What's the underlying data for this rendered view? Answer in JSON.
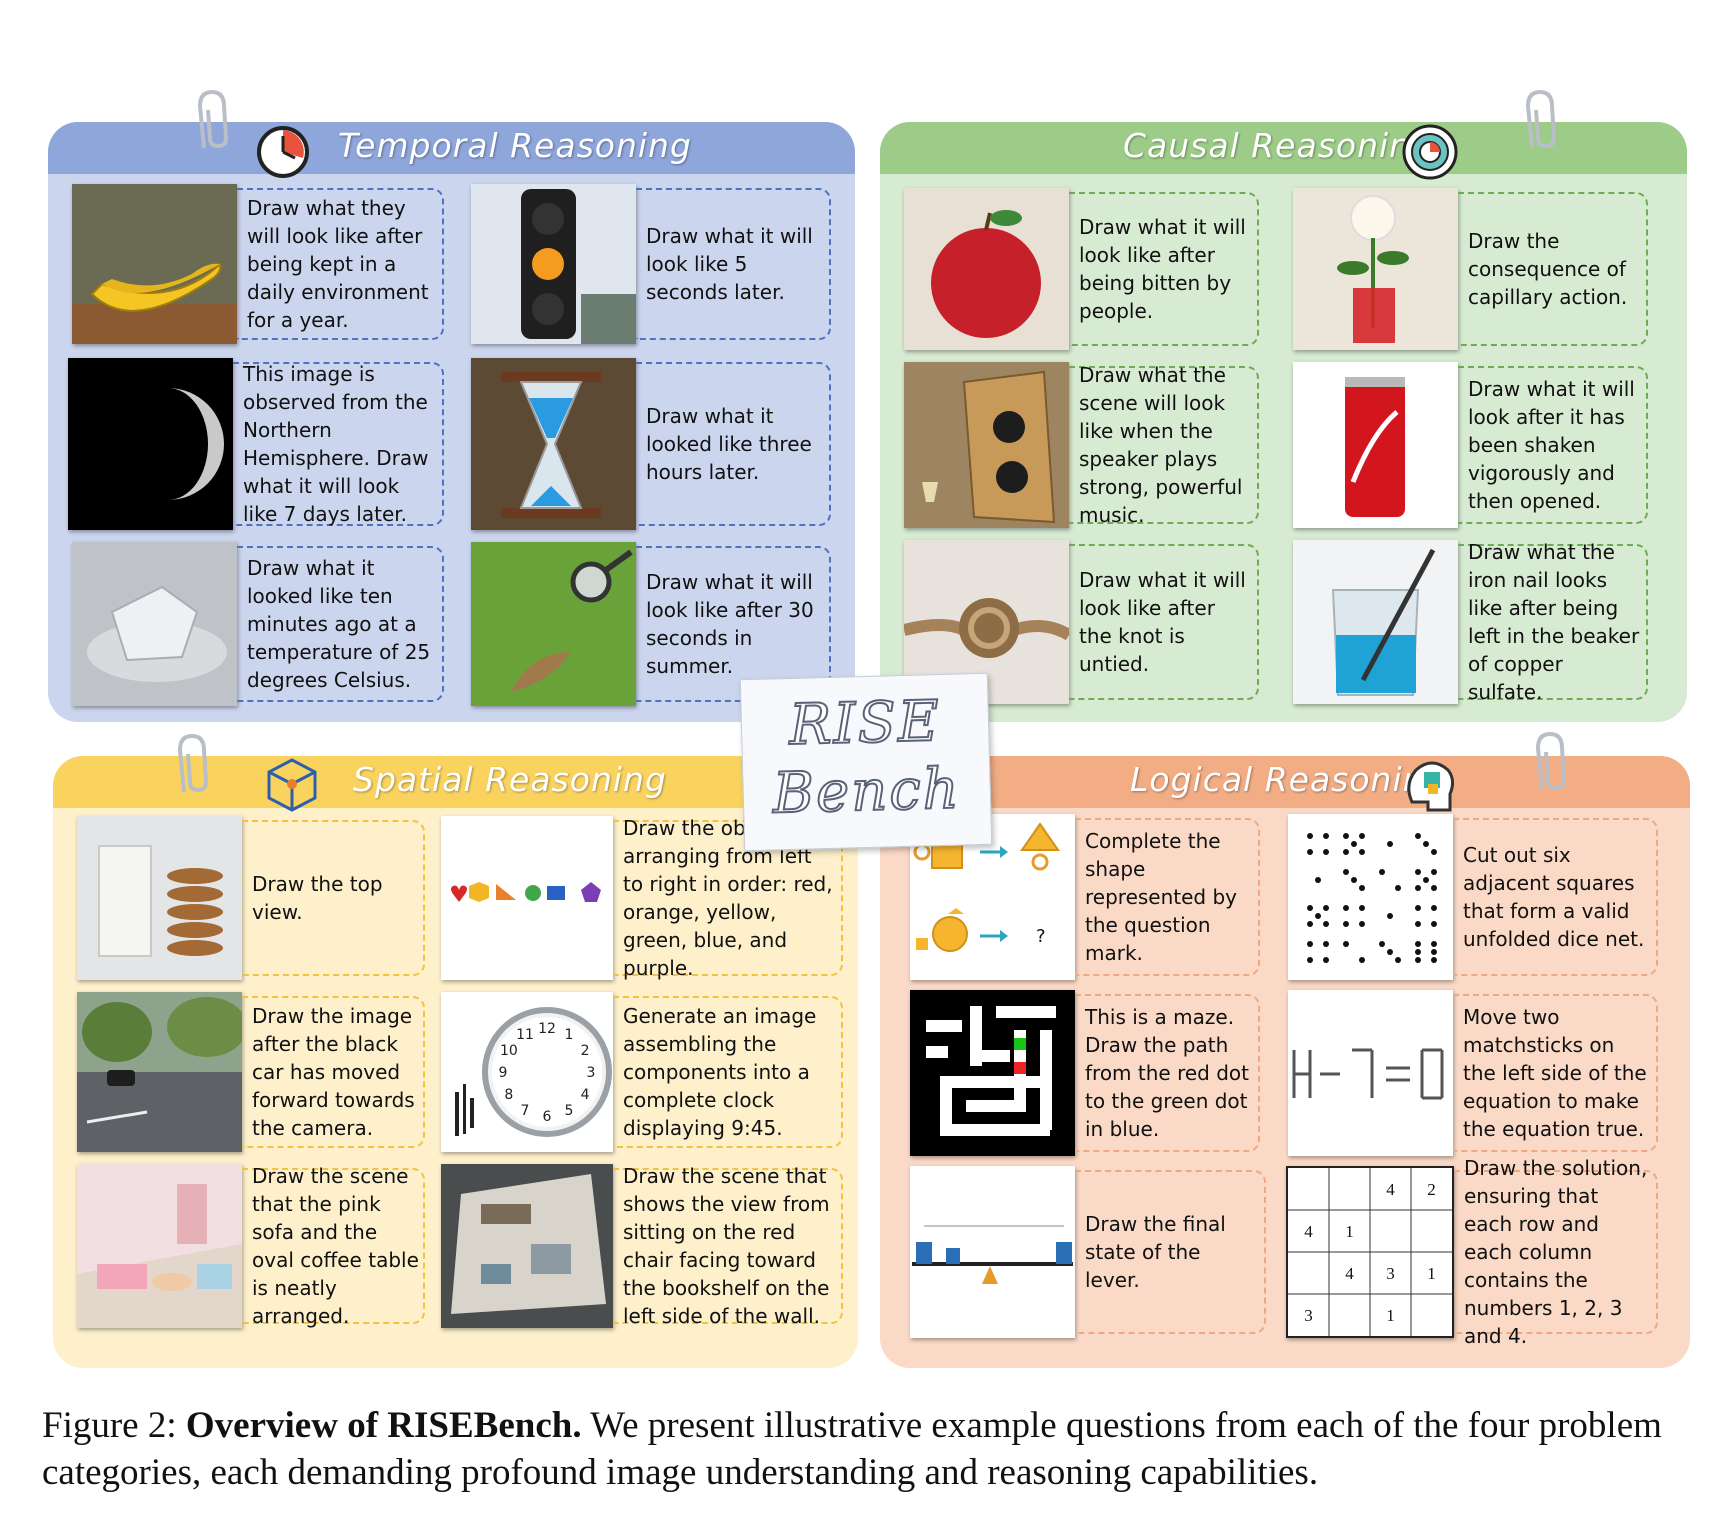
{
  "temporal": {
    "title": "Temporal Reasoning",
    "icon": "clock-icon",
    "cards": [
      {
        "text": "Draw what they will look like after being kept in a daily environment for a year.",
        "image": "banana-photo"
      },
      {
        "text": "Draw what it will look like 5 seconds later.",
        "image": "traffic-light-photo"
      },
      {
        "text": "This image is observed from the Northern Hemisphere.  Draw what it will look like 7 days later.",
        "image": "moon-photo"
      },
      {
        "text": "Draw what it looked like three hours later.",
        "image": "hourglass-photo"
      },
      {
        "text": "Draw what it looked like ten minutes ago at a temperature of 25 degrees Celsius.",
        "image": "melting-ice-photo"
      },
      {
        "text": "Draw what it will look like after 30 seconds in summer.",
        "image": "magnifier-leaf-photo"
      }
    ]
  },
  "causal": {
    "title": "Causal Reasoning",
    "icon": "target-icon",
    "cards": [
      {
        "text": "Draw what it will look like after being bitten by people.",
        "image": "apple-photo"
      },
      {
        "text": "Draw the consequence of capillary action.",
        "image": "white-rose-photo"
      },
      {
        "text": "Draw what the scene will look like when the speaker plays strong, powerful music.",
        "image": "speaker-photo"
      },
      {
        "text": "Draw what it will look after it has been shaken vigorously and then opened.",
        "image": "coca-cola-can-photo"
      },
      {
        "text": "Draw what it will look like after the knot is untied.",
        "image": "rope-knot-photo"
      },
      {
        "text": "Draw what the iron nail looks like after being left in the beaker of copper sulfate.",
        "image": "beaker-nail-photo"
      }
    ]
  },
  "spatial": {
    "title": "Spatial Reasoning",
    "icon": "cube-icon",
    "cards": [
      {
        "text": "Draw the top view.",
        "image": "milk-cookies-photo"
      },
      {
        "text": "Draw the objects arranging from left to right in order: red, orange, yellow, green, blue, and purple.",
        "image": "colored-shapes"
      },
      {
        "text": "Draw the image after the black car has moved forward towards the camera.",
        "image": "street-photo"
      },
      {
        "text": "Generate an image assembling the components into a complete clock displaying 9:45.",
        "image": "clock-parts"
      },
      {
        "text": "Draw the scene that the pink sofa and the oval coffee table is neatly arranged.",
        "image": "pink-room-render"
      },
      {
        "text": "Draw the scene that shows the view from sitting on the red chair facing toward the bookshelf on the left side of the wall.",
        "image": "house-interior-render"
      }
    ]
  },
  "logical": {
    "title": "Logical Reasoning",
    "icon": "brain-puzzle-icon",
    "cards": [
      {
        "text": "Complete the shape represented by the question mark.",
        "image": "shape-analogy"
      },
      {
        "text": "Cut out six adjacent squares that form a valid unfolded dice net.",
        "image": "dice-grid"
      },
      {
        "text": "This is a maze. Draw the path from the red dot to the green dot in blue.",
        "image": "maze"
      },
      {
        "text": "Move two matchsticks on the left side of the equation to make the equation true.",
        "image": "matchstick-equation"
      },
      {
        "text": "Draw the final state of the lever.",
        "image": "lever"
      },
      {
        "text": "Draw the solution, ensuring that each row and each column contains the numbers 1, 2, 3 and 4.",
        "image": "sudoku-4x4"
      }
    ],
    "sudoku": [
      [
        "",
        "",
        "4",
        "2"
      ],
      [
        "4",
        "1",
        "",
        ""
      ],
      [
        "",
        "4",
        "3",
        "1"
      ],
      [
        "3",
        "",
        "1",
        ""
      ]
    ],
    "shape_question_mark": "?"
  },
  "logo": {
    "line1": "RISE",
    "line2": "Bench"
  },
  "caption": {
    "label": "Figure 2:",
    "bold": "Overview of RISEBench.",
    "text": "We present illustrative example questions from each of the four problem categories, each demanding profound image understanding and reasoning capabilities."
  }
}
